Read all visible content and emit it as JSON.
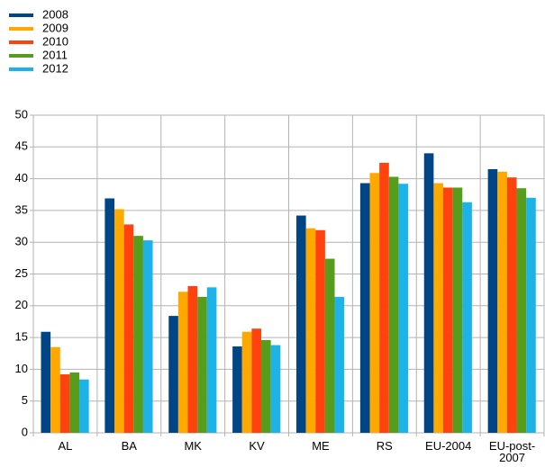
{
  "chart_data": {
    "type": "bar",
    "categories": [
      "AL",
      "BA",
      "MK",
      "KV",
      "ME",
      "RS",
      "EU-2004",
      "EU-post-2007"
    ],
    "series": [
      {
        "name": "2008",
        "color": "#004586",
        "values": [
          15.9,
          36.9,
          18.4,
          13.6,
          34.2,
          39.3,
          44.0,
          41.5
        ]
      },
      {
        "name": "2009",
        "color": "#ffa800",
        "values": [
          13.5,
          35.2,
          22.2,
          15.9,
          32.2,
          40.9,
          39.3,
          41.1
        ]
      },
      {
        "name": "2010",
        "color": "#ff420e",
        "values": [
          9.2,
          32.8,
          23.1,
          16.4,
          31.9,
          42.5,
          38.6,
          40.2
        ]
      },
      {
        "name": "2011",
        "color": "#579d1c",
        "values": [
          9.5,
          31.0,
          21.4,
          14.6,
          27.4,
          40.3,
          38.6,
          38.5
        ]
      },
      {
        "name": "2012",
        "color": "#1eb3e8",
        "values": [
          8.4,
          30.3,
          22.9,
          13.8,
          21.4,
          39.2,
          36.3,
          37.0
        ]
      }
    ],
    "ylim": [
      0,
      50
    ],
    "yticks": [
      0,
      5,
      10,
      15,
      20,
      25,
      30,
      35,
      40,
      45,
      50
    ],
    "grid": true,
    "legend": "top-left"
  }
}
